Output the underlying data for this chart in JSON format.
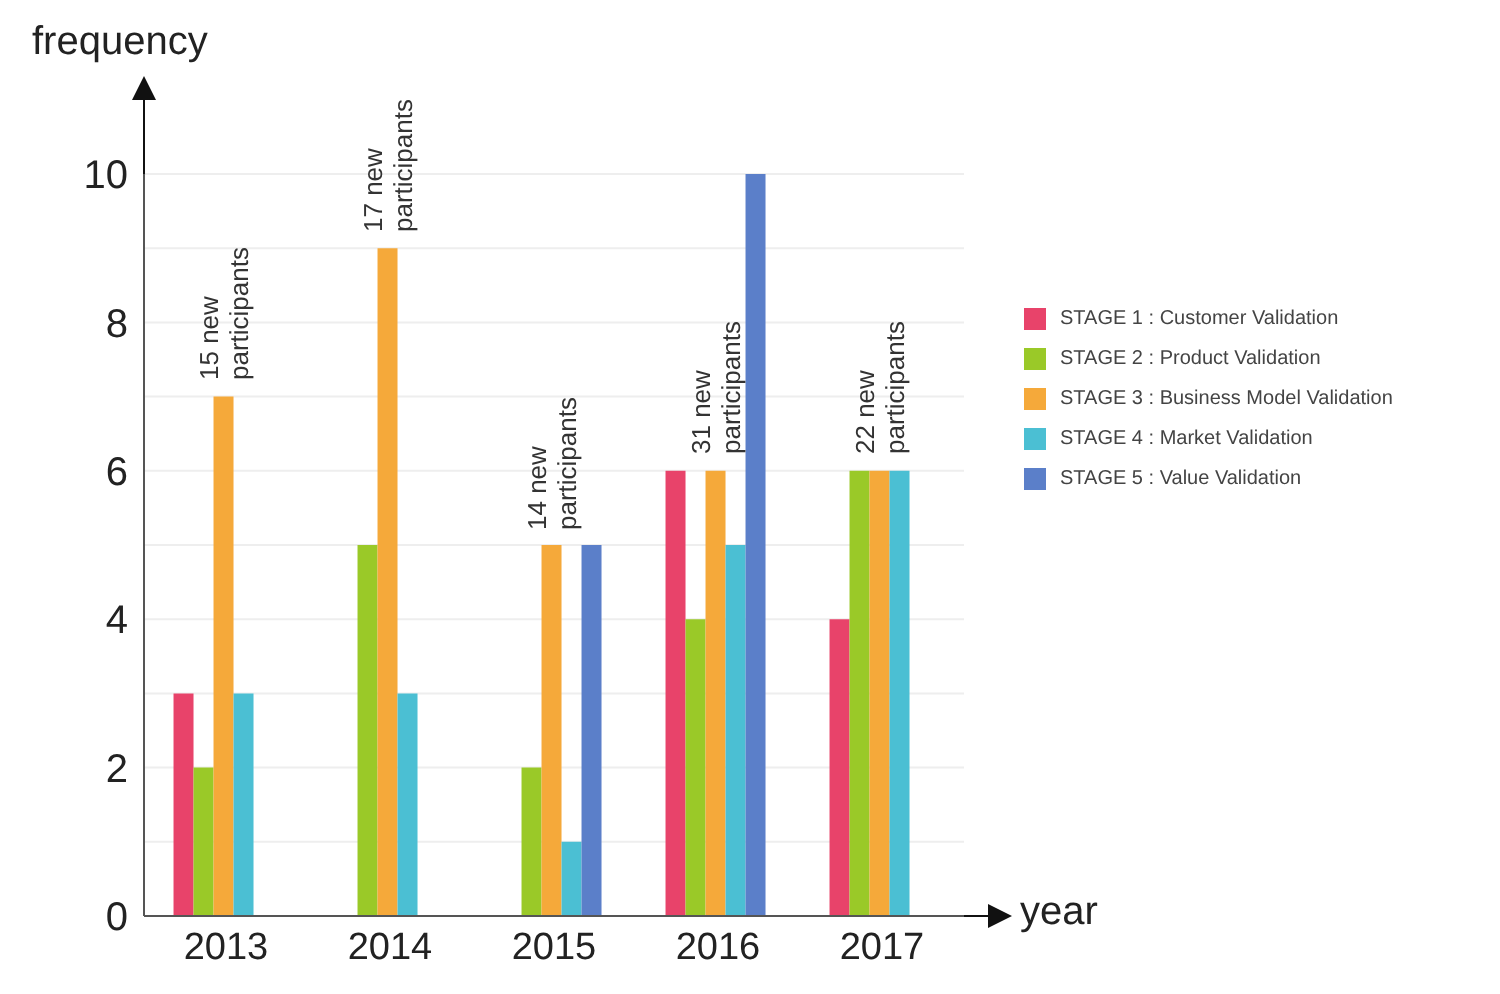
{
  "chart_data": {
    "type": "bar",
    "xlabel": "year",
    "ylabel": "frequency",
    "categories": [
      "2013",
      "2014",
      "2015",
      "2016",
      "2017"
    ],
    "series": [
      {
        "name": "STAGE 1 : Customer Validation",
        "color": "#e8436a",
        "values": [
          3,
          0,
          0,
          6,
          4
        ]
      },
      {
        "name": "STAGE 2 : Product Validation",
        "color": "#9ac928",
        "values": [
          2,
          5,
          2,
          4,
          6
        ]
      },
      {
        "name": "STAGE 3 : Business Model Validation",
        "color": "#f5a93a",
        "values": [
          7,
          9,
          5,
          6,
          6
        ]
      },
      {
        "name": "STAGE 4 : Market Validation",
        "color": "#4bbfd3",
        "values": [
          3,
          3,
          1,
          5,
          6
        ]
      },
      {
        "name": "STAGE 5 : Value Validation",
        "color": "#5b7fc9",
        "values": [
          0,
          0,
          5,
          10,
          0
        ]
      }
    ],
    "ylim": [
      0,
      10
    ],
    "yticks": [
      0,
      {
        "value": 1,
        "label": null
      },
      2,
      {
        "value": 3,
        "label": null
      },
      4,
      {
        "value": 5,
        "label": null
      },
      6,
      {
        "value": 7,
        "label": null
      },
      8,
      {
        "value": 9,
        "label": null
      },
      10
    ],
    "grid": "y",
    "legend": "right",
    "annotations": [
      {
        "text": "15 new\nparticipants",
        "x": "2013",
        "y": 7
      },
      {
        "text": "17 new\nparticipants",
        "x": "2014",
        "y": 9
      },
      {
        "text": "14 new\nparticipants",
        "x": "2015",
        "y": 5
      },
      {
        "text": "31 new\nparticipants",
        "x": "2016",
        "y": 6
      },
      {
        "text": "22 new\nparticipants",
        "x": "2017",
        "y": 6
      }
    ]
  }
}
